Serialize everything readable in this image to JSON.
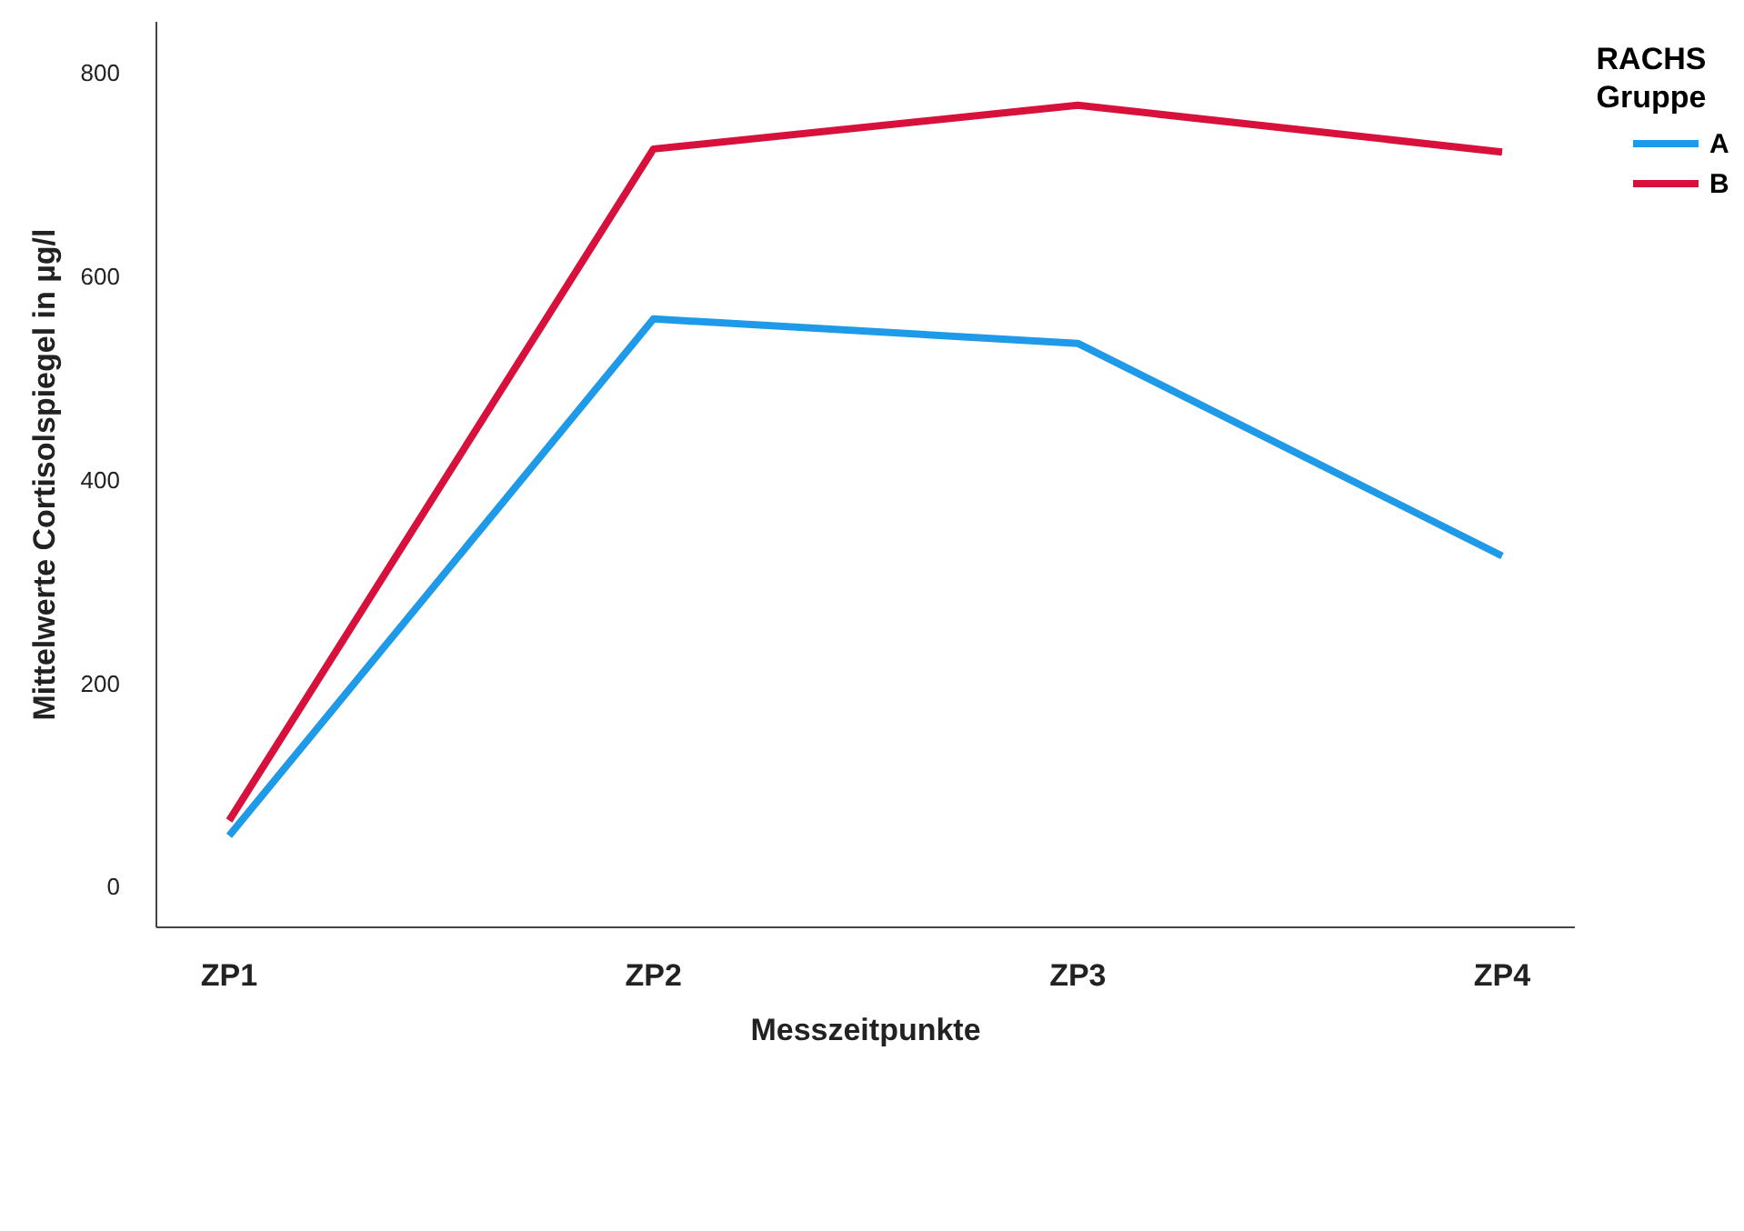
{
  "chart_data": {
    "type": "line",
    "xlabel": "Messzeitpunkte",
    "ylabel": "Mittelwerte Cortisolspiegel in µg/l",
    "legend_title": "RACHS Gruppe",
    "categories": [
      "ZP1",
      "ZP2",
      "ZP3",
      "ZP4"
    ],
    "series": [
      {
        "name": "A",
        "color": "#1f9ae8",
        "values": [
          50,
          558,
          534,
          325
        ]
      },
      {
        "name": "B",
        "color": "#d8103c",
        "values": [
          65,
          725,
          768,
          722
        ]
      }
    ],
    "ylim": [
      -40,
      850
    ],
    "yticks": [
      0,
      200,
      400,
      600,
      800
    ],
    "grid": false,
    "legend": "top right",
    "marker": "none",
    "line_style": "solid"
  }
}
